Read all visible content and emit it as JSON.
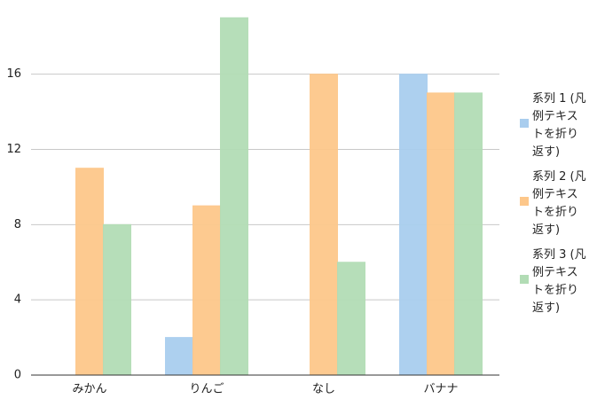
{
  "chart_data": {
    "type": "bar",
    "categories": [
      "みかん",
      "りんご",
      "なし",
      "バナナ"
    ],
    "series": [
      {
        "name": "系列 1 (凡例テキストを折り返す)",
        "color": "#a9cdee",
        "values": [
          0,
          2,
          0,
          16
        ]
      },
      {
        "name": "系列 2 (凡例テキストを折り返す)",
        "color": "#fdc78a",
        "values": [
          11,
          9,
          16,
          15
        ]
      },
      {
        "name": "系列 3 (凡例テキストを折り返す)",
        "color": "#b2dcb5",
        "values": [
          8,
          19,
          6,
          15
        ]
      }
    ],
    "ylim": [
      0,
      19
    ],
    "yticks": [
      0,
      4,
      8,
      12,
      16
    ],
    "grid": true,
    "legend": "right"
  }
}
